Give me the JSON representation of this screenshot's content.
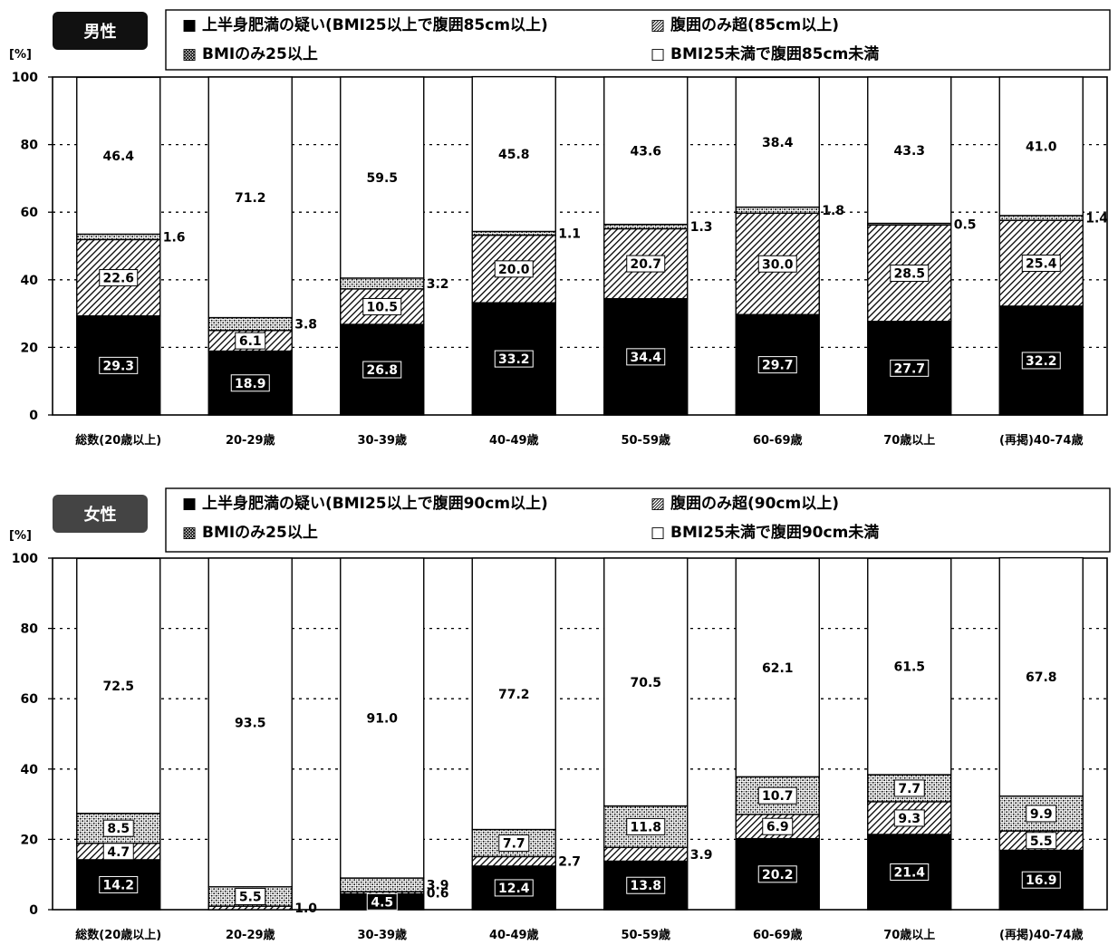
{
  "chart_data": [
    {
      "type": "bar",
      "stacked": true,
      "panel_label": "男性",
      "unit_label": "[%]",
      "ylim": [
        0,
        100
      ],
      "yticks": [
        "0",
        "20",
        "40",
        "60",
        "80",
        "100"
      ],
      "grid": true,
      "legend_position": "top",
      "categories": [
        "総数(20歳以上)",
        "20-29歳",
        "30-39歳",
        "40-49歳",
        "50-59歳",
        "60-69歳",
        "70歳以上",
        "(再掲)40-74歳"
      ],
      "series": [
        {
          "name": "上半身肥満の疑い(BMI25以上で腹囲85cm以上)",
          "legend": "■ 上半身肥満の疑い(BMI25以上で腹囲85cm以上)",
          "values": [
            29.3,
            18.9,
            26.8,
            33.2,
            34.4,
            29.7,
            27.7,
            32.2
          ],
          "labels": [
            "29.3",
            "18.9",
            "26.8",
            "33.2",
            "34.4",
            "29.7",
            "27.7",
            "32.2"
          ]
        },
        {
          "name": "腹囲のみ超(85cm以上)",
          "legend": "▨ 腹囲のみ超(85cm以上)",
          "values": [
            22.6,
            6.1,
            10.5,
            20.0,
            20.7,
            30.0,
            28.5,
            25.4
          ],
          "labels": [
            "22.6",
            "6.1",
            "10.5",
            "20.0",
            "20.7",
            "30.0",
            "28.5",
            "25.4"
          ]
        },
        {
          "name": "BMIのみ25以上",
          "legend": "▩ BMIのみ25以上",
          "values": [
            1.6,
            3.8,
            3.2,
            1.1,
            1.3,
            1.8,
            0.5,
            1.4
          ],
          "labels": [
            "1.6",
            "3.8",
            "3.2",
            "1.1",
            "1.3",
            "1.8",
            "0.5",
            "1.4"
          ]
        },
        {
          "name": "BMI25未満で腹囲85cm未満",
          "legend": "□ BMI25未満で腹囲85cm未満",
          "values": [
            46.4,
            71.2,
            59.5,
            45.8,
            43.6,
            38.4,
            43.3,
            41.0
          ],
          "labels": [
            "46.4",
            "71.2",
            "59.5",
            "45.8",
            "43.6",
            "38.4",
            "43.3",
            "41.0"
          ]
        }
      ]
    },
    {
      "type": "bar",
      "stacked": true,
      "panel_label": "女性",
      "unit_label": "[%]",
      "ylim": [
        0,
        100
      ],
      "yticks": [
        "0",
        "20",
        "40",
        "60",
        "80",
        "100"
      ],
      "grid": true,
      "legend_position": "top",
      "categories": [
        "総数(20歳以上)",
        "20-29歳",
        "30-39歳",
        "40-49歳",
        "50-59歳",
        "60-69歳",
        "70歳以上",
        "(再掲)40-74歳"
      ],
      "series": [
        {
          "name": "上半身肥満の疑い(BMI25以上で腹囲90cm以上)",
          "legend": "■ 上半身肥満の疑い(BMI25以上で腹囲90cm以上)",
          "values": [
            14.2,
            0.0,
            4.5,
            12.4,
            13.8,
            20.2,
            21.4,
            16.9
          ],
          "labels": [
            "14.2",
            "",
            "4.5",
            "12.4",
            "13.8",
            "20.2",
            "21.4",
            "16.9"
          ]
        },
        {
          "name": "腹囲のみ超(90cm以上)",
          "legend": "▨ 腹囲のみ超(90cm以上)",
          "values": [
            4.7,
            1.0,
            0.6,
            2.7,
            3.9,
            6.9,
            9.3,
            5.5
          ],
          "labels": [
            "4.7",
            "1.0",
            "0.6",
            "2.7",
            "3.9",
            "6.9",
            "9.3",
            "5.5"
          ]
        },
        {
          "name": "BMIのみ25以上",
          "legend": "▩ BMIのみ25以上",
          "values": [
            8.5,
            5.5,
            3.9,
            7.7,
            11.8,
            10.7,
            7.7,
            9.9
          ],
          "labels": [
            "8.5",
            "5.5",
            "3.9",
            "7.7",
            "11.8",
            "10.7",
            "7.7",
            "9.9"
          ]
        },
        {
          "name": "BMI25未満で腹囲90cm未満",
          "legend": "□ BMI25未満で腹囲90cm未満",
          "values": [
            72.5,
            93.5,
            91.0,
            77.2,
            70.5,
            62.1,
            61.5,
            67.8
          ],
          "labels": [
            "72.5",
            "93.5",
            "91.0",
            "77.2",
            "70.5",
            "62.1",
            "61.5",
            "67.8"
          ]
        }
      ]
    }
  ]
}
